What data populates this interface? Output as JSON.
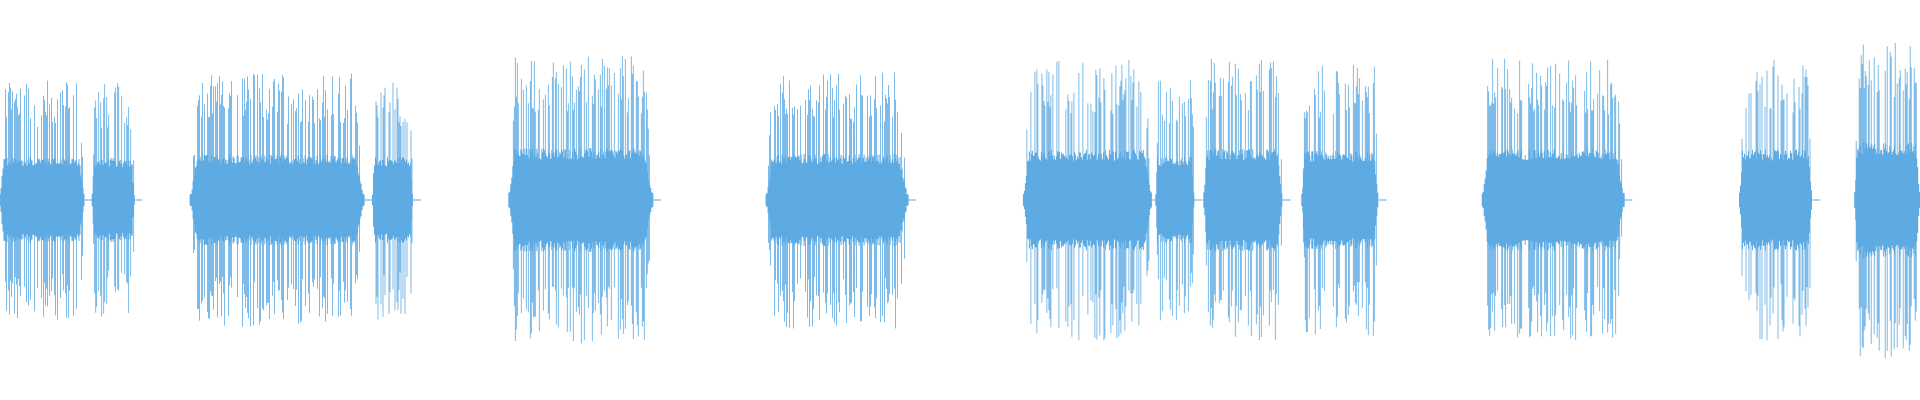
{
  "waveform": {
    "color": "#5EAAE2",
    "background": "#FFFFFF",
    "segments": [
      {
        "start": 0.0,
        "end": 0.044,
        "amplitude": 0.62
      },
      {
        "start": 0.048,
        "end": 0.07,
        "amplitude": 0.6
      },
      {
        "start": 0.099,
        "end": 0.19,
        "amplitude": 0.65
      },
      {
        "start": 0.194,
        "end": 0.215,
        "amplitude": 0.62
      },
      {
        "start": 0.265,
        "end": 0.34,
        "amplitude": 0.74
      },
      {
        "start": 0.399,
        "end": 0.473,
        "amplitude": 0.66
      },
      {
        "start": 0.533,
        "end": 0.6,
        "amplitude": 0.72
      },
      {
        "start": 0.602,
        "end": 0.622,
        "amplitude": 0.62
      },
      {
        "start": 0.627,
        "end": 0.668,
        "amplitude": 0.73
      },
      {
        "start": 0.678,
        "end": 0.718,
        "amplitude": 0.7
      },
      {
        "start": 0.772,
        "end": 0.846,
        "amplitude": 0.73
      },
      {
        "start": 0.906,
        "end": 0.944,
        "amplitude": 0.72
      },
      {
        "start": 0.966,
        "end": 1.0,
        "amplitude": 0.82
      }
    ]
  }
}
